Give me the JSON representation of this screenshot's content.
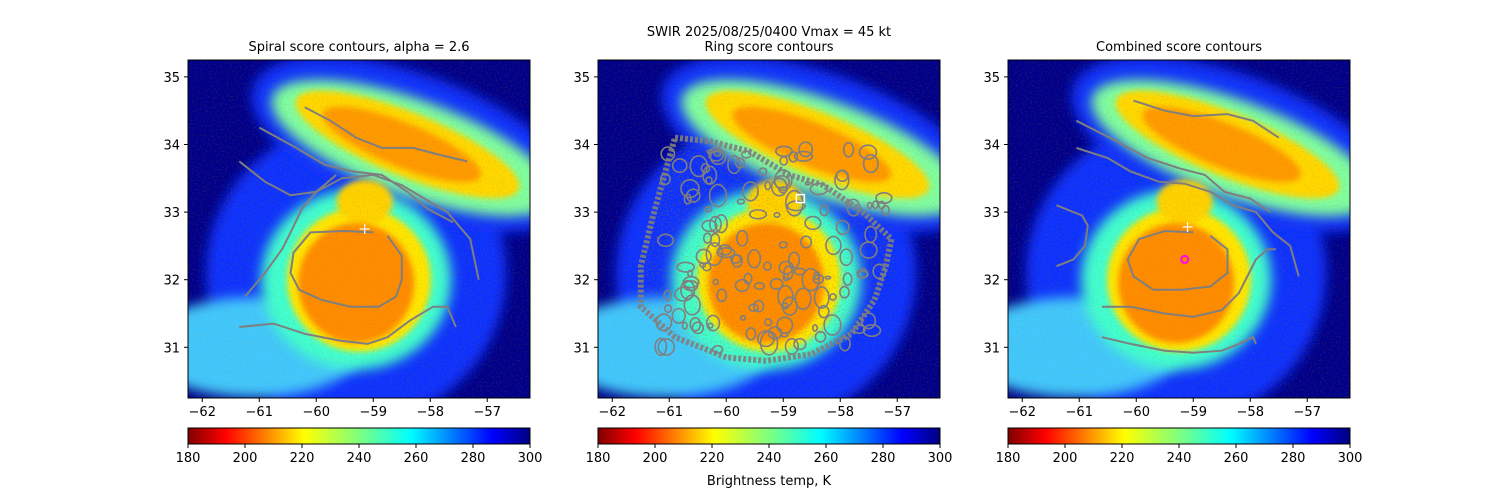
{
  "suptitle": "SWIR  2025/08/25/0400    Vmax = 45 kt",
  "colorbar": {
    "label": "Brightness temp, K",
    "ticks": [
      180,
      200,
      220,
      240,
      260,
      280,
      300
    ],
    "range": [
      180,
      300
    ],
    "colormap": "jet_r"
  },
  "chart_data": [
    {
      "type": "heatmap",
      "title": "Spiral score contours, alpha =  2.6",
      "xlim": [
        -62.25,
        -56.25
      ],
      "ylim": [
        30.25,
        35.25
      ],
      "xticks": [
        -62,
        -61,
        -60,
        -59,
        -58,
        -57
      ],
      "yticks": [
        31,
        32,
        33,
        34,
        35
      ],
      "best_track_marker": {
        "lon": -59.15,
        "lat": 32.75
      },
      "contours": [
        [
          [
            -59.0,
            32.7
          ],
          [
            -59.5,
            32.72
          ],
          [
            -60.1,
            32.7
          ],
          [
            -60.4,
            32.4
          ],
          [
            -60.45,
            32.1
          ],
          [
            -60.3,
            31.85
          ],
          [
            -59.9,
            31.7
          ],
          [
            -59.4,
            31.6
          ],
          [
            -58.9,
            31.6
          ],
          [
            -58.6,
            31.75
          ],
          [
            -58.5,
            32.0
          ],
          [
            -58.5,
            32.35
          ],
          [
            -58.75,
            32.65
          ]
        ],
        [
          [
            -61.25,
            31.75
          ],
          [
            -60.9,
            32.1
          ],
          [
            -60.6,
            32.45
          ],
          [
            -60.45,
            32.7
          ],
          [
            -60.25,
            33.05
          ],
          [
            -60.0,
            33.3
          ],
          [
            -59.55,
            33.5
          ],
          [
            -59.0,
            33.55
          ],
          [
            -58.5,
            33.4
          ],
          [
            -58.1,
            33.2
          ],
          [
            -57.7,
            33.0
          ],
          [
            -57.3,
            32.6
          ],
          [
            -57.15,
            32.0
          ]
        ],
        [
          [
            -61.35,
            33.75
          ],
          [
            -60.9,
            33.45
          ],
          [
            -60.45,
            33.25
          ],
          [
            -60.0,
            33.3
          ],
          [
            -59.65,
            33.55
          ]
        ],
        [
          [
            -61.0,
            34.25
          ],
          [
            -60.35,
            33.95
          ],
          [
            -59.85,
            33.7
          ],
          [
            -59.35,
            33.6
          ],
          [
            -58.85,
            33.55
          ],
          [
            -58.4,
            33.3
          ],
          [
            -58.05,
            33.05
          ],
          [
            -57.6,
            32.85
          ]
        ],
        [
          [
            -61.35,
            31.3
          ],
          [
            -60.75,
            31.35
          ],
          [
            -60.2,
            31.2
          ],
          [
            -59.6,
            31.1
          ],
          [
            -59.1,
            31.05
          ],
          [
            -58.75,
            31.15
          ],
          [
            -58.35,
            31.4
          ],
          [
            -57.95,
            31.6
          ],
          [
            -57.7,
            31.6
          ],
          [
            -57.55,
            31.3
          ]
        ],
        [
          [
            -60.2,
            34.55
          ],
          [
            -59.75,
            34.35
          ],
          [
            -59.3,
            34.1
          ],
          [
            -58.85,
            33.95
          ],
          [
            -58.3,
            33.95
          ],
          [
            -57.85,
            33.85
          ],
          [
            -57.35,
            33.75
          ]
        ]
      ]
    },
    {
      "type": "heatmap",
      "title": "Ring score contours",
      "xlim": [
        -62.25,
        -56.25
      ],
      "ylim": [
        30.25,
        35.25
      ],
      "xticks": [
        -62,
        -61,
        -60,
        -59,
        -58,
        -57
      ],
      "yticks": [
        31,
        32,
        33,
        34,
        35
      ],
      "center_marker": {
        "lon": -58.7,
        "lat": 33.2
      },
      "contour_region": [
        [
          -60.9,
          34.1
        ],
        [
          -60.3,
          34.05
        ],
        [
          -59.6,
          33.9
        ],
        [
          -58.9,
          33.55
        ],
        [
          -58.3,
          33.4
        ],
        [
          -57.6,
          33.0
        ],
        [
          -57.1,
          32.6
        ],
        [
          -57.2,
          32.2
        ],
        [
          -57.4,
          31.7
        ],
        [
          -57.8,
          31.2
        ],
        [
          -58.5,
          30.9
        ],
        [
          -59.3,
          30.8
        ],
        [
          -60.0,
          30.85
        ],
        [
          -60.9,
          31.15
        ],
        [
          -61.5,
          31.6
        ],
        [
          -61.5,
          32.2
        ],
        [
          -61.3,
          32.9
        ],
        [
          -61.1,
          33.5
        ]
      ]
    },
    {
      "type": "heatmap",
      "title": "Combined score contours",
      "xlim": [
        -62.25,
        -56.25
      ],
      "ylim": [
        30.25,
        35.25
      ],
      "xticks": [
        -62,
        -61,
        -60,
        -59,
        -58,
        -57
      ],
      "yticks": [
        31,
        32,
        33,
        34,
        35
      ],
      "best_track_marker": {
        "lon": -59.1,
        "lat": 32.78
      },
      "center_marker": {
        "lon": -59.15,
        "lat": 32.3
      },
      "contours": [
        [
          [
            -59.0,
            32.7
          ],
          [
            -59.5,
            32.72
          ],
          [
            -59.95,
            32.6
          ],
          [
            -60.15,
            32.3
          ],
          [
            -60.05,
            32.05
          ],
          [
            -59.7,
            31.85
          ],
          [
            -59.2,
            31.85
          ],
          [
            -58.7,
            31.9
          ],
          [
            -58.4,
            32.1
          ],
          [
            -58.4,
            32.45
          ],
          [
            -58.7,
            32.65
          ]
        ],
        [
          [
            -61.4,
            32.2
          ],
          [
            -61.1,
            32.3
          ],
          [
            -60.9,
            32.5
          ],
          [
            -60.85,
            32.8
          ],
          [
            -60.95,
            32.95
          ],
          [
            -61.4,
            33.1
          ]
        ],
        [
          [
            -60.6,
            31.6
          ],
          [
            -60.1,
            31.6
          ],
          [
            -59.5,
            31.5
          ],
          [
            -59.0,
            31.45
          ],
          [
            -58.5,
            31.55
          ],
          [
            -58.2,
            31.8
          ],
          [
            -57.9,
            32.3
          ],
          [
            -57.7,
            32.45
          ],
          [
            -57.55,
            32.45
          ]
        ],
        [
          [
            -60.6,
            31.15
          ],
          [
            -60.1,
            31.05
          ],
          [
            -59.5,
            30.95
          ],
          [
            -59.0,
            30.92
          ],
          [
            -58.5,
            30.95
          ],
          [
            -58.2,
            31.05
          ],
          [
            -57.95,
            31.15
          ],
          [
            -57.9,
            31.05
          ]
        ],
        [
          [
            -61.05,
            33.95
          ],
          [
            -60.5,
            33.8
          ],
          [
            -60.1,
            33.6
          ],
          [
            -59.6,
            33.45
          ],
          [
            -59.15,
            33.42
          ],
          [
            -58.7,
            33.3
          ],
          [
            -58.3,
            33.1
          ],
          [
            -57.9,
            33.0
          ],
          [
            -57.6,
            32.7
          ],
          [
            -57.3,
            32.5
          ],
          [
            -57.15,
            32.05
          ]
        ],
        [
          [
            -61.05,
            34.35
          ],
          [
            -60.35,
            34.05
          ],
          [
            -59.8,
            33.8
          ],
          [
            -59.25,
            33.65
          ],
          [
            -58.8,
            33.55
          ],
          [
            -58.45,
            33.3
          ],
          [
            -58.0,
            33.2
          ],
          [
            -57.65,
            33.0
          ]
        ],
        [
          [
            -60.05,
            34.65
          ],
          [
            -59.5,
            34.5
          ],
          [
            -59.0,
            34.42
          ],
          [
            -58.4,
            34.45
          ],
          [
            -57.95,
            34.35
          ],
          [
            -57.5,
            34.1
          ]
        ]
      ]
    }
  ]
}
